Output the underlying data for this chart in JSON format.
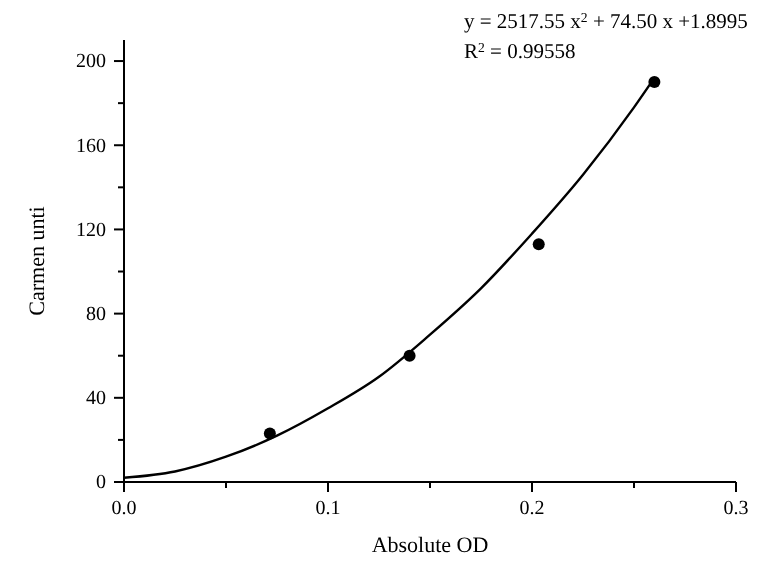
{
  "chart_data": {
    "type": "scatter",
    "xlabel": "Absolute OD",
    "ylabel": "Carmen unti",
    "annotations": [
      "y = 2517.55 x$^{2}$ + 74.50 x +1.8995",
      "R$^{2}$ = 0.99558"
    ],
    "series": [
      {
        "color": "#000000",
        "marker": "circle",
        "x": [
          0.0715,
          0.14,
          0.2033,
          0.26
        ],
        "values": [
          23,
          60,
          113,
          190
        ]
      },
      {
        "type": "line",
        "color": "#000000",
        "line_style": "solid",
        "x": [
          0,
          0.025,
          0.05,
          0.075,
          0.1,
          0.125,
          0.15,
          0.175,
          0.2,
          0.225,
          0.25,
          0.26
        ],
        "values": [
          2,
          5,
          12,
          22,
          35,
          50,
          70,
          92,
          118,
          146,
          178,
          192
        ]
      }
    ],
    "xlim": [
      0,
      0.3
    ],
    "xticks": [
      {
        "value": 0,
        "label": "0.0"
      },
      {
        "value": 0.05,
        "label": null
      },
      {
        "value": 0.1,
        "label": "0.1"
      },
      {
        "value": 0.15,
        "label": null
      },
      {
        "value": 0.2,
        "label": "0.2"
      },
      {
        "value": 0.25,
        "label": null
      },
      {
        "value": 0.3,
        "label": "0.3"
      }
    ],
    "ylim": [
      0,
      210
    ],
    "yticks": [
      0,
      {
        "value": 20,
        "label": null
      },
      40,
      {
        "value": 60,
        "label": null
      },
      80,
      {
        "value": 100,
        "label": null
      },
      120,
      {
        "value": 140,
        "label": null
      },
      160,
      {
        "value": 180,
        "label": null
      },
      200
    ],
    "grid": false
  }
}
